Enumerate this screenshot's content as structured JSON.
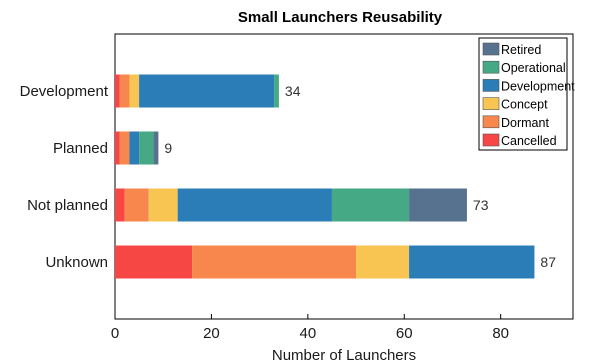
{
  "chart_data": {
    "type": "bar",
    "orientation": "horizontal",
    "stacked": true,
    "title": "Small Launchers Reusability",
    "xlabel": "Number of Launchers",
    "ylabel": "",
    "xlim": [
      0,
      95
    ],
    "xticks": [
      0,
      20,
      40,
      60,
      80
    ],
    "grid": false,
    "legend_position": "top-right",
    "categories": [
      "Development",
      "Planned",
      "Not planned",
      "Unknown"
    ],
    "totals": [
      34,
      9,
      73,
      87
    ],
    "series": [
      {
        "name": "Cancelled",
        "color": "#f64745",
        "values": [
          1,
          1,
          2,
          16
        ]
      },
      {
        "name": "Dormant",
        "color": "#f7874c",
        "values": [
          2,
          2,
          5,
          34
        ]
      },
      {
        "name": "Concept",
        "color": "#f9c552",
        "values": [
          2,
          0,
          6,
          11
        ]
      },
      {
        "name": "Development",
        "color": "#2a7db6",
        "values": [
          28,
          2,
          32,
          26
        ]
      },
      {
        "name": "Operational",
        "color": "#46a985",
        "values": [
          1,
          3,
          16,
          0
        ]
      },
      {
        "name": "Retired",
        "color": "#56728f",
        "values": [
          0,
          1,
          12,
          0
        ]
      }
    ],
    "legend_order": [
      "Retired",
      "Operational",
      "Development",
      "Concept",
      "Dormant",
      "Cancelled"
    ]
  }
}
